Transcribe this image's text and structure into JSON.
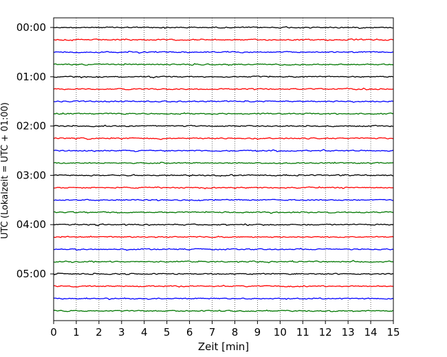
{
  "chart_data": {
    "type": "line",
    "chart_kind": "helicorder (dayplot) seismogram, 15-minute traces",
    "xlabel": "Zeit  [min]",
    "ylabel": "UTC (Lokalzeit = UTC + 01:00)",
    "xlim": [
      0,
      15
    ],
    "xticks": [
      0,
      1,
      2,
      3,
      4,
      5,
      6,
      7,
      8,
      9,
      10,
      11,
      12,
      13,
      14,
      15
    ],
    "x_gridlines": "dotted vertical at every minute",
    "ytick_labels": [
      "00:00",
      "01:00",
      "02:00",
      "03:00",
      "04:00",
      "05:00"
    ],
    "trace_minutes_per_row": 15,
    "trace_start_times": [
      "00:00",
      "00:15",
      "00:30",
      "00:45",
      "01:00",
      "01:15",
      "01:30",
      "01:45",
      "02:00",
      "02:15",
      "02:30",
      "02:45",
      "03:00",
      "03:15",
      "03:30",
      "03:45",
      "04:00",
      "04:15",
      "04:30",
      "04:45",
      "05:00",
      "05:15",
      "05:30",
      "05:45"
    ],
    "color_cycle": [
      "#000000",
      "#ff0000",
      "#0000ff",
      "#007700"
    ],
    "legend": "none"
  }
}
